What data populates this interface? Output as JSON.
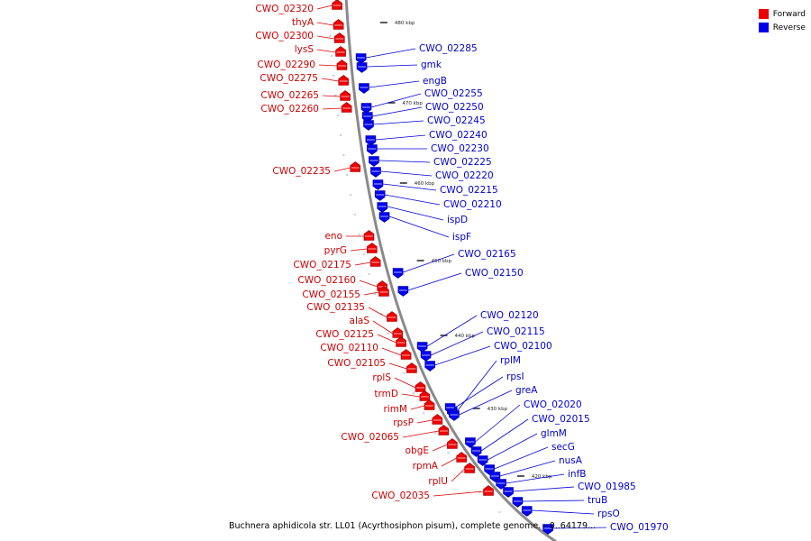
{
  "caption": "Buchnera aphidicola str. LL01 (Acyrthosiphon pisum), complete genome. - 0..64179...",
  "legend": [
    {
      "label": "Forward",
      "color": "#ee0000"
    },
    {
      "label": "Reverse",
      "color": "#0000ee"
    }
  ],
  "forward_color": "#ee0000",
  "reverse_color": "#0000ee",
  "ticks": [
    "480 kbp",
    "470 kbp",
    "460 kbp",
    "450 kbp",
    "440 kbp",
    "430 kbp",
    "420 kbp"
  ],
  "forward_labels": [
    "CWO_02320",
    "thyA",
    "CWO_02300",
    "lysS",
    "CWO_02290",
    "CWO_02275",
    "CWO_02265",
    "CWO_02260",
    "CWO_02235",
    "eno",
    "pyrG",
    "CWO_02175",
    "CWO_02160",
    "CWO_02155",
    "CWO_02135",
    "alaS",
    "CWO_02125",
    "CWO_02110",
    "CWO_02105",
    "rplS",
    "trmD",
    "rimM",
    "rpsP",
    "CWO_02065",
    "obgE",
    "rpmA",
    "rplU",
    "CWO_02035"
  ],
  "reverse_labels": [
    "CWO_02285",
    "gmk",
    "engB",
    "CWO_02255",
    "CWO_02250",
    "CWO_02245",
    "CWO_02240",
    "CWO_02230",
    "CWO_02225",
    "CWO_02220",
    "CWO_02215",
    "CWO_02210",
    "ispD",
    "ispF",
    "CWO_02165",
    "CWO_02150",
    "CWO_02120",
    "CWO_02115",
    "CWO_02100",
    "rplM",
    "rpsI",
    "greA",
    "CWO_02020",
    "CWO_02015",
    "glmM",
    "secG",
    "nusA",
    "infB",
    "CWO_01985",
    "truB",
    "rpsO",
    "CWO_01970"
  ]
}
